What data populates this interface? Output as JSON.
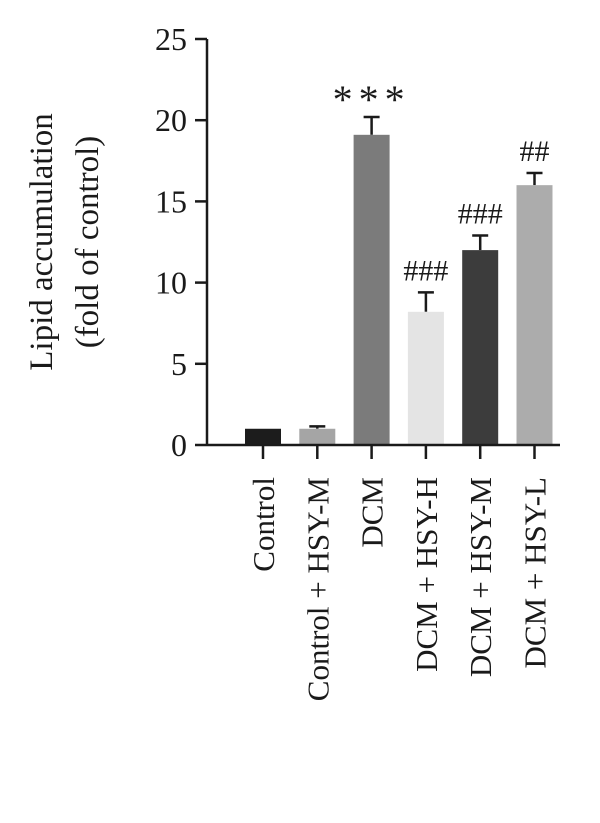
{
  "chart_data": {
    "type": "bar",
    "categories": [
      "Control",
      "Control + HSY-M",
      "DCM",
      "DCM + HSY-H",
      "DCM + HSY-M",
      "DCM + HSY-L"
    ],
    "values": [
      1.0,
      1.0,
      19.1,
      8.2,
      12.0,
      16.0
    ],
    "errors": [
      0.0,
      0.15,
      1.1,
      1.2,
      0.9,
      0.75
    ],
    "annotations": [
      "",
      "",
      "***",
      "###",
      "###",
      "##"
    ],
    "bar_colors": [
      "#1c1c1c",
      "#a5a5a5",
      "#7b7b7b",
      "#e4e4e4",
      "#3c3c3c",
      "#acacac"
    ],
    "ylabel_line1": "Lipid accumulation",
    "ylabel_line2": "(fold of control)",
    "xlabel": "",
    "title": "",
    "ylim": [
      0,
      25
    ],
    "yticks": [
      0,
      5,
      10,
      15,
      20,
      25
    ],
    "grid": false
  }
}
